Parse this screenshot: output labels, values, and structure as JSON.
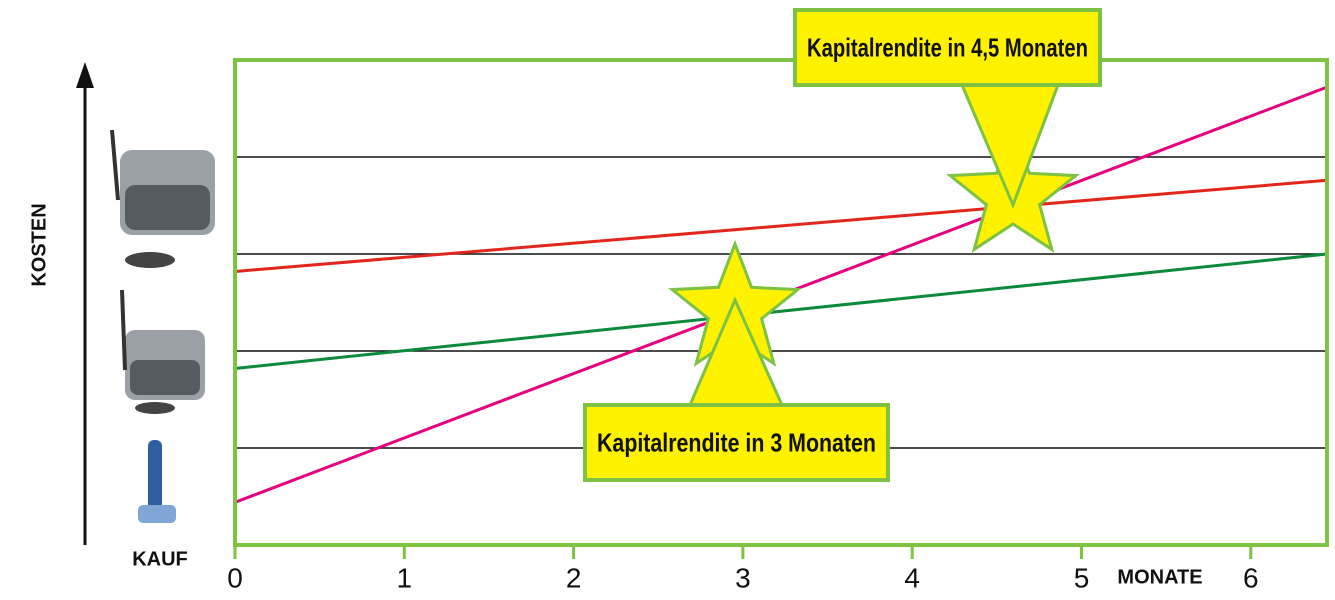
{
  "chart_data": {
    "type": "line",
    "x_label": "MONATE",
    "y_label": "KOSTEN",
    "origin_label": "KAUF",
    "xlim": [
      0,
      6.45
    ],
    "xticks": [
      0,
      1,
      2,
      3,
      4,
      5,
      6
    ],
    "ylim": [
      0,
      5
    ],
    "ygrid": [
      1,
      2,
      3,
      4
    ],
    "series": [
      {
        "color": "#e6007e",
        "x": [
          0,
          6.45
        ],
        "values": [
          0.44,
          4.72
        ]
      },
      {
        "color": "#e3261c",
        "x": [
          0,
          6.45
        ],
        "values": [
          2.82,
          3.76
        ]
      },
      {
        "color": "#0a8a3a",
        "x": [
          0,
          6.45
        ],
        "values": [
          1.82,
          3.0
        ]
      }
    ],
    "annotations": [
      "Kapitalrendite in 4,5 Monaten",
      "Kapitalrendite in 3 Monaten"
    ]
  }
}
